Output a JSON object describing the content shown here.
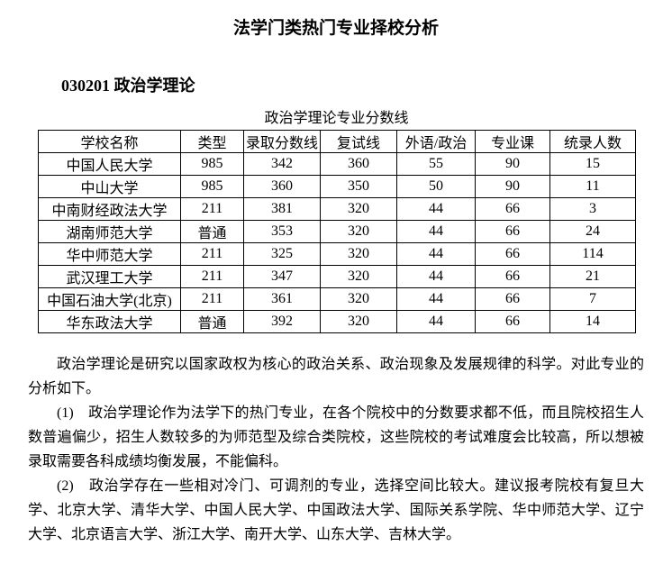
{
  "page": {
    "title": "法学门类热门专业择校分析",
    "section_heading": "030201 政治学理论",
    "table_caption": "政治学理论专业分数线"
  },
  "table": {
    "headers": [
      "学校名称",
      "类型",
      "录取分数线",
      "复试线",
      "外语/政治",
      "专业课",
      "统录人数"
    ],
    "rows": [
      [
        "中国人民大学",
        "985",
        "342",
        "360",
        "55",
        "90",
        "15"
      ],
      [
        "中山大学",
        "985",
        "360",
        "350",
        "50",
        "90",
        "11"
      ],
      [
        "中南财经政法大学",
        "211",
        "381",
        "320",
        "44",
        "66",
        "3"
      ],
      [
        "湖南师范大学",
        "普通",
        "353",
        "320",
        "44",
        "66",
        "24"
      ],
      [
        "华中师范大学",
        "211",
        "325",
        "320",
        "44",
        "66",
        "114"
      ],
      [
        "武汉理工大学",
        "211",
        "347",
        "320",
        "44",
        "66",
        "21"
      ],
      [
        "中国石油大学(北京)",
        "211",
        "361",
        "320",
        "44",
        "66",
        "7"
      ],
      [
        "华东政法大学",
        "普通",
        "392",
        "320",
        "44",
        "66",
        "14"
      ]
    ]
  },
  "paragraphs": [
    "政治学理论是研究以国家政权为核心的政治关系、政治现象及发展规律的科学。对此专业的分析如下。",
    "(1)　政治学理论作为法学下的热门专业，在各个院校中的分数要求都不低，而且院校招生人数普遍偏少，招生人数较多的为师范型及综合类院校，这些院校的考试难度会比较高，所以想被录取需要各科成绩均衡发展，不能偏科。",
    "(2)　政治学存在一些相对冷门、可调剂的专业，选择空间比较大。建议报考院校有复旦大学、北京大学、清华大学、中国人民大学、中国政法大学、国际关系学院、华中师范大学、辽宁大学、北京语言大学、浙江大学、南开大学、山东大学、吉林大学。"
  ]
}
